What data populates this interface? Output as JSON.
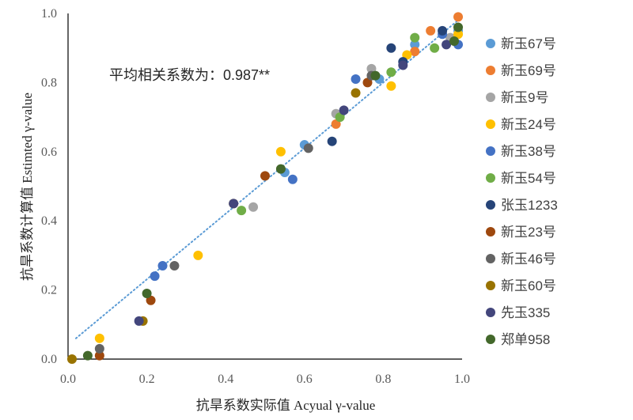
{
  "chart_data": {
    "type": "scatter",
    "xlabel": "抗旱系数实际值 Acyual γ-value",
    "ylabel": "抗旱系数计算值 Estimted γ-value",
    "annotation": "平均相关系数为：0.987**",
    "xlim": [
      0.0,
      1.0
    ],
    "ylim": [
      0.0,
      1.0
    ],
    "x_ticks": [
      "0.0",
      "0.2",
      "0.4",
      "0.6",
      "0.8",
      "1.0"
    ],
    "y_ticks": [
      "0.0",
      "0.2",
      "0.4",
      "0.6",
      "0.8",
      "1.0"
    ],
    "grid": false,
    "legend_position": "right",
    "trendline": {
      "style": "dotted",
      "color": "#5B9BD5",
      "from": [
        0.02,
        0.06
      ],
      "to": [
        1.0,
        0.99
      ]
    },
    "series": [
      {
        "name": "新玉67号",
        "color": "#5B9BD5",
        "points": [
          [
            0.55,
            0.54
          ],
          [
            0.6,
            0.62
          ],
          [
            0.79,
            0.81
          ],
          [
            0.88,
            0.91
          ],
          [
            0.99,
            0.95
          ]
        ]
      },
      {
        "name": "新玉69号",
        "color": "#ED7D31",
        "points": [
          [
            0.68,
            0.68
          ],
          [
            0.88,
            0.89
          ],
          [
            0.92,
            0.95
          ],
          [
            0.99,
            0.99
          ]
        ]
      },
      {
        "name": "新玉9号",
        "color": "#A5A5A5",
        "points": [
          [
            0.47,
            0.44
          ],
          [
            0.68,
            0.71
          ],
          [
            0.77,
            0.84
          ],
          [
            0.97,
            0.93
          ]
        ]
      },
      {
        "name": "新玉24号",
        "color": "#FFC000",
        "points": [
          [
            0.08,
            0.06
          ],
          [
            0.33,
            0.3
          ],
          [
            0.54,
            0.6
          ],
          [
            0.82,
            0.79
          ],
          [
            0.86,
            0.88
          ],
          [
            0.99,
            0.94
          ]
        ]
      },
      {
        "name": "新玉38号",
        "color": "#4472C4",
        "points": [
          [
            0.22,
            0.24
          ],
          [
            0.24,
            0.27
          ],
          [
            0.57,
            0.52
          ],
          [
            0.73,
            0.81
          ],
          [
            0.95,
            0.94
          ],
          [
            0.99,
            0.91
          ]
        ]
      },
      {
        "name": "新玉54号",
        "color": "#70AD47",
        "points": [
          [
            0.44,
            0.43
          ],
          [
            0.69,
            0.7
          ],
          [
            0.82,
            0.83
          ],
          [
            0.88,
            0.93
          ],
          [
            0.93,
            0.9
          ]
        ]
      },
      {
        "name": "张玉1233",
        "color": "#264478",
        "points": [
          [
            0.67,
            0.63
          ],
          [
            0.82,
            0.9
          ],
          [
            0.85,
            0.86
          ],
          [
            0.95,
            0.95
          ]
        ]
      },
      {
        "name": "新玉23号",
        "color": "#9E480E",
        "points": [
          [
            0.08,
            0.01
          ],
          [
            0.21,
            0.17
          ],
          [
            0.5,
            0.53
          ],
          [
            0.76,
            0.8
          ]
        ]
      },
      {
        "name": "新玉46号",
        "color": "#636363",
        "points": [
          [
            0.08,
            0.03
          ],
          [
            0.27,
            0.27
          ],
          [
            0.61,
            0.61
          ],
          [
            0.77,
            0.82
          ]
        ]
      },
      {
        "name": "新玉60号",
        "color": "#997300",
        "points": [
          [
            0.01,
            0.0
          ],
          [
            0.19,
            0.11
          ],
          [
            0.42,
            0.45
          ],
          [
            0.73,
            0.77
          ]
        ]
      },
      {
        "name": "先玉335",
        "color": "#43467C",
        "points": [
          [
            0.18,
            0.11
          ],
          [
            0.42,
            0.45
          ],
          [
            0.7,
            0.72
          ],
          [
            0.85,
            0.85
          ],
          [
            0.96,
            0.91
          ]
        ]
      },
      {
        "name": "郑单958",
        "color": "#43682B",
        "points": [
          [
            0.05,
            0.01
          ],
          [
            0.2,
            0.19
          ],
          [
            0.54,
            0.55
          ],
          [
            0.78,
            0.82
          ],
          [
            0.98,
            0.92
          ],
          [
            0.99,
            0.96
          ]
        ]
      }
    ]
  }
}
